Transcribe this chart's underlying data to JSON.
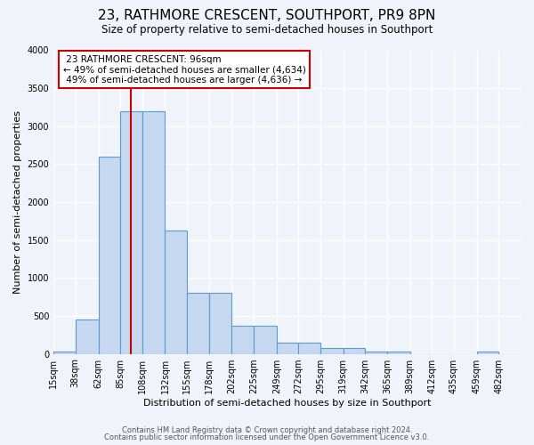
{
  "title": "23, RATHMORE CRESCENT, SOUTHPORT, PR9 8PN",
  "subtitle": "Size of property relative to semi-detached houses in Southport",
  "xlabel": "Distribution of semi-detached houses by size in Southport",
  "ylabel": "Number of semi-detached properties",
  "bin_labels": [
    "15sqm",
    "38sqm",
    "62sqm",
    "85sqm",
    "108sqm",
    "132sqm",
    "155sqm",
    "178sqm",
    "202sqm",
    "225sqm",
    "249sqm",
    "272sqm",
    "295sqm",
    "319sqm",
    "342sqm",
    "365sqm",
    "389sqm",
    "412sqm",
    "435sqm",
    "459sqm",
    "482sqm"
  ],
  "bar_heights": [
    25,
    450,
    2600,
    3200,
    3200,
    1620,
    800,
    800,
    375,
    375,
    150,
    150,
    80,
    80,
    25,
    25,
    0,
    0,
    0,
    25,
    0
  ],
  "bar_color": "#c5d8ef",
  "bar_edge_color": "#5b9bd5",
  "property_line_x": 96,
  "property_line_label": "23 RATHMORE CRESCENT: 96sqm",
  "smaller_pct": "49%",
  "smaller_count": "4,634",
  "larger_pct": "49%",
  "larger_count": "4,636",
  "annotation_box_color": "#ffffff",
  "annotation_box_edge": "#cc0000",
  "line_color": "#cc0000",
  "ylim": [
    0,
    4000
  ],
  "yticks": [
    0,
    500,
    1000,
    1500,
    2000,
    2500,
    3000,
    3500,
    4000
  ],
  "footer1": "Contains HM Land Registry data © Crown copyright and database right 2024.",
  "footer2": "Contains public sector information licensed under the Open Government Licence v3.0.",
  "background_color": "#f0f4fa",
  "grid_color": "#ffffff",
  "title_fontsize": 11,
  "subtitle_fontsize": 8.5,
  "axis_label_fontsize": 8,
  "tick_fontsize": 7,
  "annotation_fontsize": 7.5,
  "footer_fontsize": 6
}
